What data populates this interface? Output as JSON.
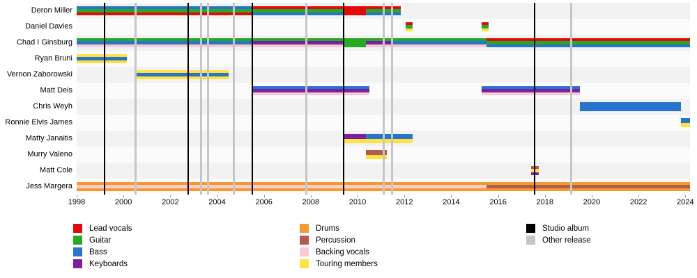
{
  "colors": {
    "lead_vocals": "#e40a0a",
    "guitar": "#27a827",
    "bass": "#2874cc",
    "keyboards": "#7b1fa2",
    "drums": "#f39c2d",
    "percussion": "#b45b50",
    "backing_vocals": "#f9c9d4",
    "touring": "#ffe23e",
    "studio_album": "#000000",
    "other_release": "#c6c6c6"
  },
  "chart_data": {
    "type": "timeline",
    "description": "Band members timeline with instrument roles per period; vertical lines mark releases.",
    "x_axis": {
      "start": 1998,
      "end": 2024.2,
      "ticks": [
        1998,
        2000,
        2002,
        2004,
        2006,
        2008,
        2010,
        2012,
        2014,
        2016,
        2018,
        2020,
        2022,
        2024
      ],
      "tick_labels": [
        "1998",
        "2000",
        "2002",
        "2004",
        "2006",
        "2008",
        "2010",
        "2012",
        "2014",
        "2016",
        "2018",
        "2020",
        "2022",
        "2024"
      ]
    },
    "members": [
      {
        "name": "Deron Miller",
        "segments": [
          {
            "start": 1998.0,
            "end": 2005.5,
            "roles": [
              "bass",
              "guitar",
              "lead_vocals"
            ]
          },
          {
            "start": 2005.5,
            "end": 2009.4,
            "roles": [
              "lead_vocals",
              "guitar",
              "bass"
            ]
          },
          {
            "start": 2009.4,
            "end": 2010.35,
            "roles": [
              "lead_vocals"
            ]
          },
          {
            "start": 2010.35,
            "end": 2011.85,
            "roles": [
              "lead_vocals",
              "guitar",
              "bass"
            ]
          }
        ]
      },
      {
        "name": "Daniel Davies",
        "segments": [
          {
            "start": 2012.05,
            "end": 2012.35,
            "roles": [
              "lead_vocals",
              "guitar",
              "touring"
            ]
          },
          {
            "start": 2015.3,
            "end": 2015.6,
            "roles": [
              "lead_vocals",
              "guitar",
              "touring"
            ]
          }
        ]
      },
      {
        "name": "Chad I Ginsburg",
        "segments": [
          {
            "start": 1998.0,
            "end": 2005.5,
            "roles": [
              "guitar",
              "bass",
              "backing_vocals"
            ]
          },
          {
            "start": 2005.5,
            "end": 2009.4,
            "roles": [
              "guitar",
              "keyboards",
              "backing_vocals"
            ]
          },
          {
            "start": 2009.4,
            "end": 2010.35,
            "roles": [
              "guitar"
            ]
          },
          {
            "start": 2010.35,
            "end": 2011.45,
            "roles": [
              "guitar",
              "keyboards",
              "backing_vocals"
            ]
          },
          {
            "start": 2011.45,
            "end": 2015.5,
            "roles": [
              "guitar",
              "bass",
              "backing_vocals"
            ]
          },
          {
            "start": 2015.5,
            "end": 2024.2,
            "roles": [
              "lead_vocals",
              "guitar",
              "bass"
            ]
          }
        ]
      },
      {
        "name": "Ryan Bruni",
        "segments": [
          {
            "start": 1998.0,
            "end": 2000.15,
            "roles": [
              "touring",
              "bass",
              "touring"
            ]
          }
        ]
      },
      {
        "name": "Vernon Zaborowski",
        "segments": [
          {
            "start": 2000.5,
            "end": 2004.5,
            "roles": [
              "touring",
              "bass",
              "touring"
            ]
          }
        ]
      },
      {
        "name": "Matt Deis",
        "segments": [
          {
            "start": 2005.5,
            "end": 2010.5,
            "roles": [
              "bass",
              "keyboards",
              "backing_vocals"
            ]
          },
          {
            "start": 2015.3,
            "end": 2019.5,
            "roles": [
              "bass",
              "keyboards",
              "backing_vocals"
            ]
          }
        ]
      },
      {
        "name": "Chris Weyh",
        "segments": [
          {
            "start": 2019.5,
            "end": 2023.8,
            "roles": [
              "bass"
            ]
          }
        ]
      },
      {
        "name": "Ronnie Elvis James",
        "segments": [
          {
            "start": 2023.8,
            "end": 2024.2,
            "roles": [
              "bass",
              "touring"
            ]
          }
        ]
      },
      {
        "name": "Matty Janaitis",
        "segments": [
          {
            "start": 2009.4,
            "end": 2010.35,
            "roles": [
              "keyboards",
              "touring"
            ]
          },
          {
            "start": 2010.35,
            "end": 2012.35,
            "roles": [
              "bass",
              "touring"
            ]
          }
        ]
      },
      {
        "name": "Murry Valeno",
        "segments": [
          {
            "start": 2010.35,
            "end": 2011.25,
            "roles": [
              "percussion",
              "touring"
            ]
          }
        ]
      },
      {
        "name": "Matt Cole",
        "segments": [
          {
            "start": 2017.4,
            "end": 2017.75,
            "roles": [
              "percussion",
              "touring",
              "keyboards"
            ]
          }
        ]
      },
      {
        "name": "Jess Margera",
        "segments": [
          {
            "start": 1998.0,
            "end": 2015.5,
            "roles": [
              "drums",
              "backing_vocals",
              "drums"
            ]
          },
          {
            "start": 2015.5,
            "end": 2024.2,
            "roles": [
              "drums",
              "percussion",
              "drums"
            ]
          }
        ]
      }
    ],
    "events": {
      "studio_albums": [
        1999.2,
        2002.75,
        2005.5,
        2009.4,
        2017.55
      ],
      "other_releases": [
        2000.5,
        2003.3,
        2003.6,
        2004.7,
        2007.8,
        2011.1,
        2011.45,
        2019.1
      ]
    }
  },
  "legend": {
    "columns": [
      {
        "items": [
          {
            "label": "Lead vocals",
            "key": "lead_vocals"
          },
          {
            "label": "Guitar",
            "key": "guitar"
          },
          {
            "label": "Bass",
            "key": "bass"
          },
          {
            "label": "Keyboards",
            "key": "keyboards"
          }
        ]
      },
      {
        "items": [
          {
            "label": "Drums",
            "key": "drums"
          },
          {
            "label": "Percussion",
            "key": "percussion"
          },
          {
            "label": "Backing vocals",
            "key": "backing_vocals"
          },
          {
            "label": "Touring members",
            "key": "touring"
          }
        ]
      },
      {
        "items": [
          {
            "label": "Studio album",
            "key": "studio_album"
          },
          {
            "label": "Other release",
            "key": "other_release"
          }
        ]
      }
    ]
  }
}
